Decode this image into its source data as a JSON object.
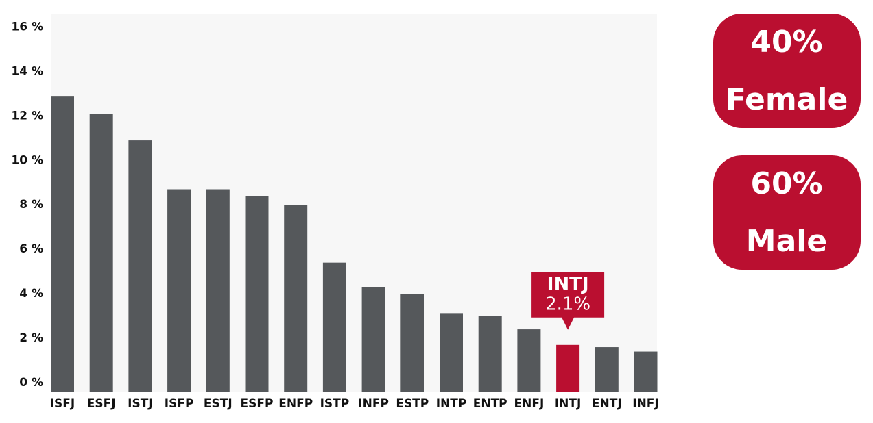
{
  "chart_data": {
    "type": "bar",
    "categories": [
      "ISFJ",
      "ESFJ",
      "ISTJ",
      "ISFP",
      "ESTJ",
      "ESFP",
      "ENFP",
      "ISTP",
      "INFP",
      "ESTP",
      "INTP",
      "ENTP",
      "ENFJ",
      "INTJ",
      "ENTJ",
      "INFJ"
    ],
    "values": [
      13.3,
      12.5,
      11.3,
      9.1,
      9.1,
      8.8,
      8.4,
      5.8,
      4.7,
      4.4,
      3.5,
      3.4,
      2.8,
      2.1,
      2.0,
      1.8
    ],
    "colors": [
      "#55585b",
      "#55585b",
      "#55585b",
      "#55585b",
      "#55585b",
      "#55585b",
      "#55585b",
      "#55585b",
      "#55585b",
      "#55585b",
      "#55585b",
      "#55585b",
      "#55585b",
      "#ba0f30",
      "#55585b",
      "#55585b"
    ],
    "ylim": [
      0,
      17
    ],
    "yticks": [
      {
        "value": 0,
        "label": "0 %"
      },
      {
        "value": 2,
        "label": "2 %"
      },
      {
        "value": 4,
        "label": "4 %"
      },
      {
        "value": 6,
        "label": "6 %"
      },
      {
        "value": 8,
        "label": "8 %"
      },
      {
        "value": 10,
        "label": "10 %"
      },
      {
        "value": 12,
        "label": "12 %"
      },
      {
        "value": 14,
        "label": "14 %"
      },
      {
        "value": 16,
        "label": "16 %"
      }
    ],
    "annotation": {
      "title": "INTJ",
      "text": "2.1%"
    }
  },
  "badges": [
    {
      "value": "40%",
      "label": "Female"
    },
    {
      "value": "60%",
      "label": "Male"
    }
  ]
}
